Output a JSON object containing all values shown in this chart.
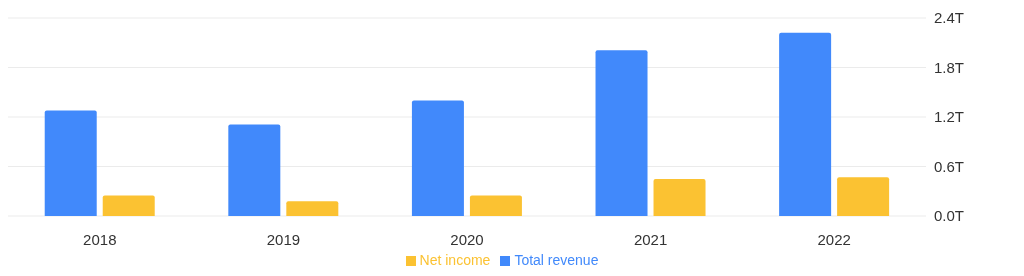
{
  "chart_data": {
    "type": "bar",
    "categories": [
      "2018",
      "2019",
      "2020",
      "2021",
      "2022"
    ],
    "series": [
      {
        "name": "Total revenue",
        "color": "#4189fb",
        "values": [
          1.28,
          1.11,
          1.4,
          2.01,
          2.22
        ]
      },
      {
        "name": "Net income",
        "color": "#fbc232",
        "values": [
          0.25,
          0.18,
          0.25,
          0.45,
          0.47
        ]
      }
    ],
    "ylim": [
      0,
      2.4
    ],
    "yticks": [
      {
        "value": 0,
        "label": "0.0T"
      },
      {
        "value": 0.6,
        "label": "0.6T"
      },
      {
        "value": 1.2,
        "label": "1.2T"
      },
      {
        "value": 1.8,
        "label": "1.8T"
      },
      {
        "value": 2.4,
        "label": "2.4T"
      }
    ],
    "grid": "y",
    "legend": "bottom"
  }
}
